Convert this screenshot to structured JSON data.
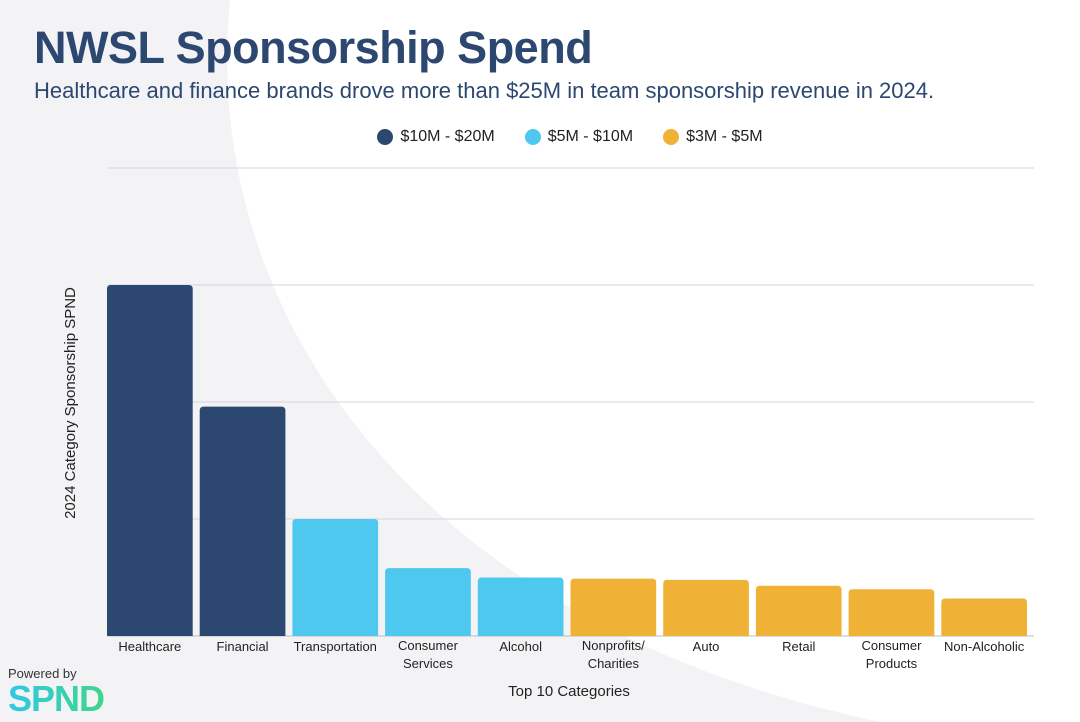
{
  "header": {
    "title": "NWSL Sponsorship Spend",
    "subtitle": "Healthcare and finance brands drove more than $25M in team sponsorship revenue in 2024."
  },
  "legend": [
    {
      "label": "$10M - $20M",
      "color": "#2c4770"
    },
    {
      "label": "$5M - $10M",
      "color": "#4fc8ef"
    },
    {
      "label": "$3M - $5M",
      "color": "#efb236"
    }
  ],
  "chart_data": {
    "type": "bar",
    "title": "NWSL Sponsorship Spend",
    "xlabel": "Top 10 Categories",
    "ylabel": "2024 Category Sponsorship SPND",
    "categories": [
      [
        "Healthcare"
      ],
      [
        "Financial"
      ],
      [
        "Transportation"
      ],
      [
        "Consumer",
        "Services"
      ],
      [
        "Alcohol"
      ],
      [
        "Nonprofits/",
        "Charities"
      ],
      [
        "Auto"
      ],
      [
        "Retail"
      ],
      [
        "Consumer",
        "Products"
      ],
      [
        "Non-Alcoholic"
      ]
    ],
    "values": [
      15.0,
      9.8,
      5.0,
      2.9,
      2.5,
      2.45,
      2.4,
      2.15,
      2.0,
      1.6
    ],
    "tiers": [
      0,
      0,
      1,
      1,
      1,
      2,
      2,
      2,
      2,
      2
    ],
    "ylim": [
      0,
      20
    ],
    "gridlines": [
      0,
      5,
      10,
      15,
      20
    ],
    "grid": true
  },
  "brand": {
    "powered": "Powered by",
    "logo": "SPND"
  }
}
